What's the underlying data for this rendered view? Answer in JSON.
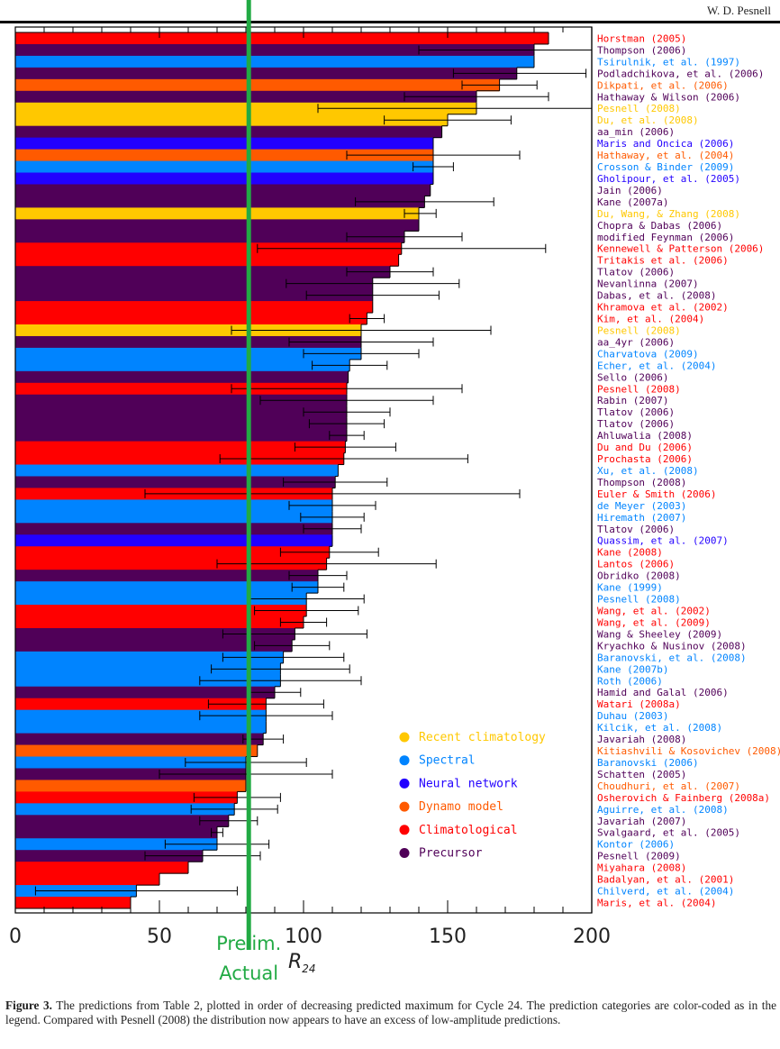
{
  "header": {
    "author": "W. D. Pesnell"
  },
  "caption": {
    "label": "Figure 3.",
    "text": "The predictions from Table 2, plotted in order of decreasing predicted maximum for Cycle 24. The prediction categories are color-coded as in the legend. Compared with Pesnell (2008) the distribution now appears to have an excess of low-amplitude predictions."
  },
  "annotation": {
    "line1": "Prelim.",
    "line2": "Actual",
    "value": 81,
    "color": "#22aa44"
  },
  "categories": {
    "recent": {
      "name": "Recent climatology",
      "color": "#ffc800"
    },
    "spectral": {
      "name": "Spectral",
      "color": "#0084ff"
    },
    "neural": {
      "name": "Neural network",
      "color": "#2200ff"
    },
    "dynamo": {
      "name": "Dynamo model",
      "color": "#ff5a00"
    },
    "clim": {
      "name": "Climatological",
      "color": "#ff0000"
    },
    "precursor": {
      "name": "Precursor",
      "color": "#500058"
    }
  },
  "chart_data": {
    "type": "bar",
    "orientation": "horizontal",
    "title": "",
    "xlabel": "R24",
    "ylabel": "",
    "xlim": [
      0,
      200
    ],
    "xticks": [
      0,
      50,
      100,
      150,
      200
    ],
    "legend": [
      "Recent climatology",
      "Spectral",
      "Neural network",
      "Dynamo model",
      "Climatological",
      "Precursor"
    ],
    "legend_position": "lower-right",
    "reference_line": {
      "label": "Prelim. Actual",
      "value": 81
    },
    "bars": [
      {
        "label": "Horstman (2005)",
        "cat": "clim",
        "value": 185,
        "err": null
      },
      {
        "label": "Thompson (2006)",
        "cat": "precursor",
        "value": 180,
        "err": [
          140,
          200
        ]
      },
      {
        "label": "Tsirulnik, et al. (1997)",
        "cat": "spectral",
        "value": 180,
        "err": null
      },
      {
        "label": "Podladchikova, et al. (2006)",
        "cat": "precursor",
        "value": 174,
        "err": [
          152,
          198
        ]
      },
      {
        "label": "Dikpati, et al. (2006)",
        "cat": "dynamo",
        "value": 168,
        "err": [
          155,
          181
        ]
      },
      {
        "label": "Hathaway & Wilson (2006)",
        "cat": "precursor",
        "value": 160,
        "err": [
          135,
          185
        ]
      },
      {
        "label": "Pesnell (2008)",
        "cat": "recent",
        "value": 160,
        "err": [
          105,
          200
        ]
      },
      {
        "label": "Du, et al. (2008)",
        "cat": "recent",
        "value": 150,
        "err": [
          128,
          172
        ]
      },
      {
        "label": "aa_min (2006)",
        "cat": "precursor",
        "value": 148,
        "err": null
      },
      {
        "label": "Maris and Oncica (2006)",
        "cat": "neural",
        "value": 145,
        "err": null
      },
      {
        "label": "Hathaway, et al. (2004)",
        "cat": "dynamo",
        "value": 145,
        "err": [
          115,
          175
        ]
      },
      {
        "label": "Crosson & Binder (2009)",
        "cat": "spectral",
        "value": 145,
        "err": [
          138,
          152
        ]
      },
      {
        "label": "Gholipour, et al. (2005)",
        "cat": "neural",
        "value": 145,
        "err": null
      },
      {
        "label": "Jain (2006)",
        "cat": "precursor",
        "value": 144,
        "err": null
      },
      {
        "label": "Kane (2007a)",
        "cat": "precursor",
        "value": 142,
        "err": [
          118,
          166
        ]
      },
      {
        "label": "Du, Wang, & Zhang (2008)",
        "cat": "recent",
        "value": 140,
        "err": [
          135,
          146
        ]
      },
      {
        "label": "Chopra & Dabas (2006)",
        "cat": "precursor",
        "value": 140,
        "err": null
      },
      {
        "label": "modified Feynman (2006)",
        "cat": "precursor",
        "value": 135,
        "err": [
          115,
          155
        ]
      },
      {
        "label": "Kennewell & Patterson (2006)",
        "cat": "clim",
        "value": 134,
        "err": [
          84,
          184
        ]
      },
      {
        "label": "Tritakis et al. (2006)",
        "cat": "clim",
        "value": 133,
        "err": null
      },
      {
        "label": "Tlatov (2006)",
        "cat": "precursor",
        "value": 130,
        "err": [
          115,
          145
        ]
      },
      {
        "label": "Nevanlinna (2007)",
        "cat": "precursor",
        "value": 124,
        "err": [
          94,
          154
        ]
      },
      {
        "label": "Dabas, et al. (2008)",
        "cat": "precursor",
        "value": 124,
        "err": [
          101,
          147
        ]
      },
      {
        "label": "Khramova et al. (2002)",
        "cat": "clim",
        "value": 124,
        "err": null
      },
      {
        "label": "Kim, et al. (2004)",
        "cat": "clim",
        "value": 122,
        "err": [
          116,
          128
        ]
      },
      {
        "label": "Pesnell (2008)",
        "cat": "recent",
        "value": 120,
        "err": [
          75,
          165
        ]
      },
      {
        "label": "aa_4yr (2006)",
        "cat": "precursor",
        "value": 120,
        "err": [
          95,
          145
        ]
      },
      {
        "label": "Charvatova (2009)",
        "cat": "spectral",
        "value": 120,
        "err": [
          100,
          140
        ]
      },
      {
        "label": "Echer, et al. (2004)",
        "cat": "spectral",
        "value": 116,
        "err": [
          103,
          129
        ]
      },
      {
        "label": "Sello (2006)",
        "cat": "precursor",
        "value": 115.5,
        "err": null
      },
      {
        "label": "Pesnell (2008)",
        "cat": "clim",
        "value": 115,
        "err": [
          75,
          155
        ]
      },
      {
        "label": "Rabin (2007)",
        "cat": "precursor",
        "value": 115,
        "err": [
          85,
          145
        ]
      },
      {
        "label": "Tlatov (2006)",
        "cat": "precursor",
        "value": 115,
        "err": [
          100,
          130
        ]
      },
      {
        "label": "Tlatov (2006)",
        "cat": "precursor",
        "value": 115,
        "err": [
          102,
          128
        ]
      },
      {
        "label": "Ahluwalia (2008)",
        "cat": "precursor",
        "value": 115,
        "err": [
          109,
          121
        ]
      },
      {
        "label": "Du and Du (2006)",
        "cat": "clim",
        "value": 114.5,
        "err": [
          97,
          132
        ]
      },
      {
        "label": "Prochasta (2006)",
        "cat": "clim",
        "value": 114,
        "err": [
          71,
          157
        ]
      },
      {
        "label": "Xu, et al. (2008)",
        "cat": "spectral",
        "value": 112,
        "err": null
      },
      {
        "label": "Thompson (2008)",
        "cat": "precursor",
        "value": 111,
        "err": [
          93,
          129
        ]
      },
      {
        "label": "Euler & Smith (2006)",
        "cat": "clim",
        "value": 110,
        "err": [
          45,
          175
        ]
      },
      {
        "label": "de Meyer (2003)",
        "cat": "spectral",
        "value": 110,
        "err": [
          95,
          125
        ]
      },
      {
        "label": "Hiremath (2007)",
        "cat": "spectral",
        "value": 110,
        "err": [
          99,
          121
        ]
      },
      {
        "label": "Tlatov (2006)",
        "cat": "precursor",
        "value": 110,
        "err": [
          100,
          120
        ]
      },
      {
        "label": "Quassim, et al. (2007)",
        "cat": "neural",
        "value": 110,
        "err": null
      },
      {
        "label": "Kane (2008)",
        "cat": "clim",
        "value": 109,
        "err": [
          92,
          126
        ]
      },
      {
        "label": "Lantos (2006)",
        "cat": "clim",
        "value": 108,
        "err": [
          70,
          146
        ]
      },
      {
        "label": "Obridko (2008)",
        "cat": "precursor",
        "value": 105,
        "err": [
          95,
          115
        ]
      },
      {
        "label": "Kane (1999)",
        "cat": "spectral",
        "value": 105,
        "err": [
          96,
          114
        ]
      },
      {
        "label": "Pesnell (2008)",
        "cat": "spectral",
        "value": 101,
        "err": [
          81,
          121
        ]
      },
      {
        "label": "Wang, et al. (2002)",
        "cat": "clim",
        "value": 101,
        "err": [
          83,
          119
        ]
      },
      {
        "label": "Wang, et al. (2009)",
        "cat": "clim",
        "value": 100,
        "err": [
          92,
          108
        ]
      },
      {
        "label": "Wang & Sheeley (2009)",
        "cat": "precursor",
        "value": 97,
        "err": [
          72,
          122
        ]
      },
      {
        "label": "Kryachko & Nusinov (2008)",
        "cat": "precursor",
        "value": 96,
        "err": [
          83,
          109
        ]
      },
      {
        "label": "Baranovski, et al. (2008)",
        "cat": "spectral",
        "value": 93,
        "err": [
          72,
          114
        ]
      },
      {
        "label": "Kane (2007b)",
        "cat": "spectral",
        "value": 92,
        "err": [
          68,
          116
        ]
      },
      {
        "label": "Roth (2006)",
        "cat": "spectral",
        "value": 92,
        "err": [
          64,
          120
        ]
      },
      {
        "label": "Hamid and Galal (2006)",
        "cat": "precursor",
        "value": 90,
        "err": [
          81,
          99
        ]
      },
      {
        "label": "Watari (2008a)",
        "cat": "clim",
        "value": 87,
        "err": [
          67,
          107
        ]
      },
      {
        "label": "Duhau (2003)",
        "cat": "spectral",
        "value": 87,
        "err": [
          64,
          110
        ]
      },
      {
        "label": "Kilcik, et al. (2008)",
        "cat": "spectral",
        "value": 87,
        "err": null
      },
      {
        "label": "Javariah (2008)",
        "cat": "precursor",
        "value": 86,
        "err": [
          79,
          93
        ]
      },
      {
        "label": "Kitiashvili & Kosovichev (2008)",
        "cat": "dynamo",
        "value": 84,
        "err": null
      },
      {
        "label": "Baranovski (2006)",
        "cat": "spectral",
        "value": 80,
        "err": [
          59,
          101
        ]
      },
      {
        "label": "Schatten (2005)",
        "cat": "precursor",
        "value": 80,
        "err": [
          50,
          110
        ]
      },
      {
        "label": "Choudhuri, et al. (2007)",
        "cat": "dynamo",
        "value": 80,
        "err": null
      },
      {
        "label": "Osherovich & Fainberg (2008a)",
        "cat": "clim",
        "value": 77,
        "err": [
          62,
          92
        ]
      },
      {
        "label": "Aguirre, et al. (2008)",
        "cat": "spectral",
        "value": 76,
        "err": [
          61,
          91
        ]
      },
      {
        "label": "Javariah (2007)",
        "cat": "precursor",
        "value": 74,
        "err": [
          64,
          84
        ]
      },
      {
        "label": "Svalgaard, et al. (2005)",
        "cat": "precursor",
        "value": 70,
        "err": [
          68,
          72
        ]
      },
      {
        "label": "Kontor (2006)",
        "cat": "spectral",
        "value": 70,
        "err": [
          52,
          88
        ]
      },
      {
        "label": "Pesnell (2009)",
        "cat": "precursor",
        "value": 65,
        "err": [
          45,
          85
        ]
      },
      {
        "label": "Miyahara (2008)",
        "cat": "clim",
        "value": 60,
        "err": null
      },
      {
        "label": "Badalyan, et al. (2001)",
        "cat": "clim",
        "value": 50,
        "err": null
      },
      {
        "label": "Chilverd, et al. (2004)",
        "cat": "spectral",
        "value": 42,
        "err": [
          7,
          77
        ]
      },
      {
        "label": "Maris, et al. (2004)",
        "cat": "clim",
        "value": 40,
        "err": null
      }
    ]
  }
}
